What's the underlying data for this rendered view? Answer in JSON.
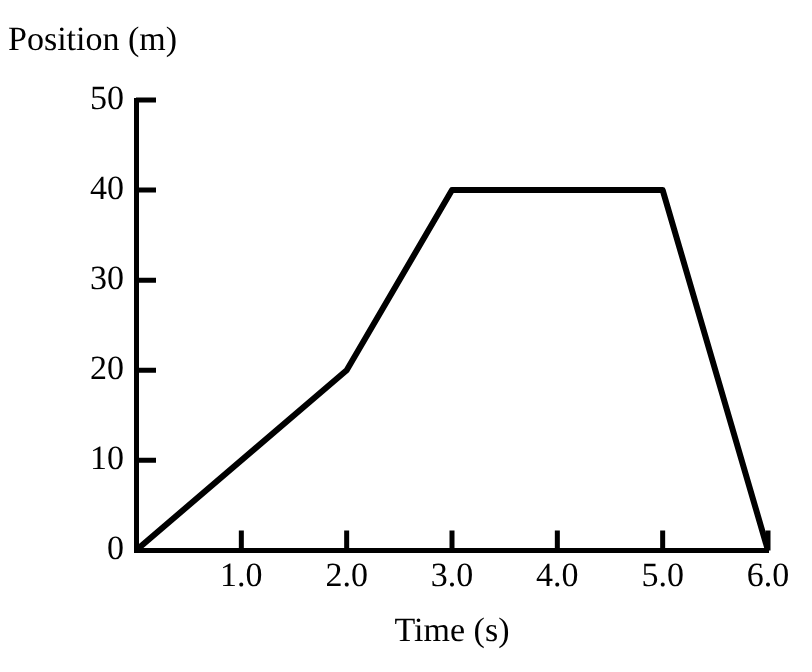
{
  "chart_data": {
    "type": "line",
    "xlabel": "Time (s)",
    "ylabel": "Position (m)",
    "x": [
      0,
      2,
      3,
      5,
      6
    ],
    "series": [
      {
        "color": "#000000",
        "values": [
          0,
          20,
          40,
          40,
          0
        ]
      }
    ],
    "xlim": [
      0,
      6
    ],
    "ylim": [
      0,
      50
    ],
    "xticks": [
      {
        "value": 1,
        "label": "1.0"
      },
      {
        "value": 2,
        "label": "2.0"
      },
      {
        "value": 3,
        "label": "3.0"
      },
      {
        "value": 4,
        "label": "4.0"
      },
      {
        "value": 5,
        "label": "5.0"
      },
      {
        "value": 6,
        "label": "6.0"
      }
    ],
    "yticks": [
      0,
      10,
      20,
      30,
      40,
      50
    ],
    "grid": false,
    "legend": false,
    "marker": "none",
    "line_style": "solid"
  }
}
